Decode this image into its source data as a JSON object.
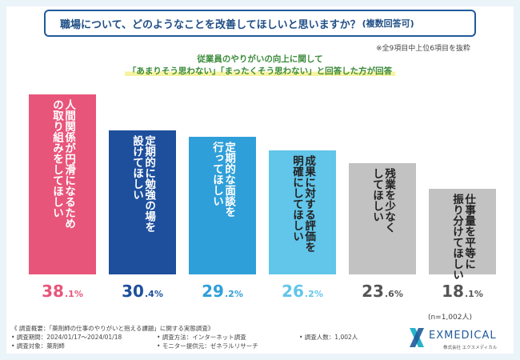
{
  "title": {
    "question": "職場について、どのようなことを改善してほしいと思いますか？",
    "qualifier": "(複数回答可)"
  },
  "note": "※全9項目中上位6項目を抜粋",
  "subtitle": {
    "line1": "従業員のやりがいの向上に関して",
    "line2": "「あまりそう思わない」「まったくそう思わない」と回答した方が回答"
  },
  "n_label": "(n=1,002人)",
  "colors": {
    "pink": "#e8557a",
    "navy": "#1d4f9c",
    "blue": "#2f9fd9",
    "lightblue": "#62c5ea",
    "grey": "#c2c2c2",
    "greytext": "#555555"
  },
  "chart_data": {
    "type": "bar",
    "title": "職場について、どのようなことを改善してほしいと思いますか？(複数回答可)",
    "categories": [
      "人間関係が円滑になるための取り組みをしてほしい",
      "定期的に勉強の場を設けてほしい",
      "定期的な面談を行ってほしい",
      "成果に対する評価を明確にしてほしい",
      "残業を少なくしてほしい",
      "仕事量を平等に振り分けてほしい"
    ],
    "label_lines": [
      [
        "人間関係が円滑になるため",
        "の取り組みをしてほしい"
      ],
      [
        "定期的に勉強の場を",
        "設けてほしい"
      ],
      [
        "定期的な面談を",
        "行ってほしい"
      ],
      [
        "成果に対する評価を",
        "明確にしてほしい"
      ],
      [
        "残業を少なく",
        "してほしい"
      ],
      [
        "仕事量を平等に",
        "振り分けてほしい"
      ]
    ],
    "values": [
      38.1,
      30.4,
      29.2,
      26.2,
      23.6,
      18.1
    ],
    "value_labels": [
      {
        "int": "38",
        "dec": ".1%"
      },
      {
        "int": "30",
        "dec": ".4%"
      },
      {
        "int": "29",
        "dec": ".2%"
      },
      {
        "int": "26",
        "dec": ".2%"
      },
      {
        "int": "23",
        "dec": ".6%"
      },
      {
        "int": "18",
        "dec": ".1%"
      }
    ],
    "ylim": [
      0,
      40
    ],
    "grid": false,
    "n": "n=1,002人"
  },
  "footer": {
    "line1": "《 調査概要：「薬剤師の仕事のやりがいと抱える課題」に関する実態調査》",
    "period": "• 調査期間：2024/01/17～2024/01/18",
    "method": "• 調査方法：インターネット調査",
    "count": "• 調査人数：1,002人",
    "target": "• 調査対象：薬剤師",
    "monitor": "• モニター提供元：ゼネラルリサーチ"
  },
  "logo": {
    "name": "EXMEDICAL",
    "sub": "株式会社 エクスメディカル",
    "icon": "x-logo-icon"
  }
}
